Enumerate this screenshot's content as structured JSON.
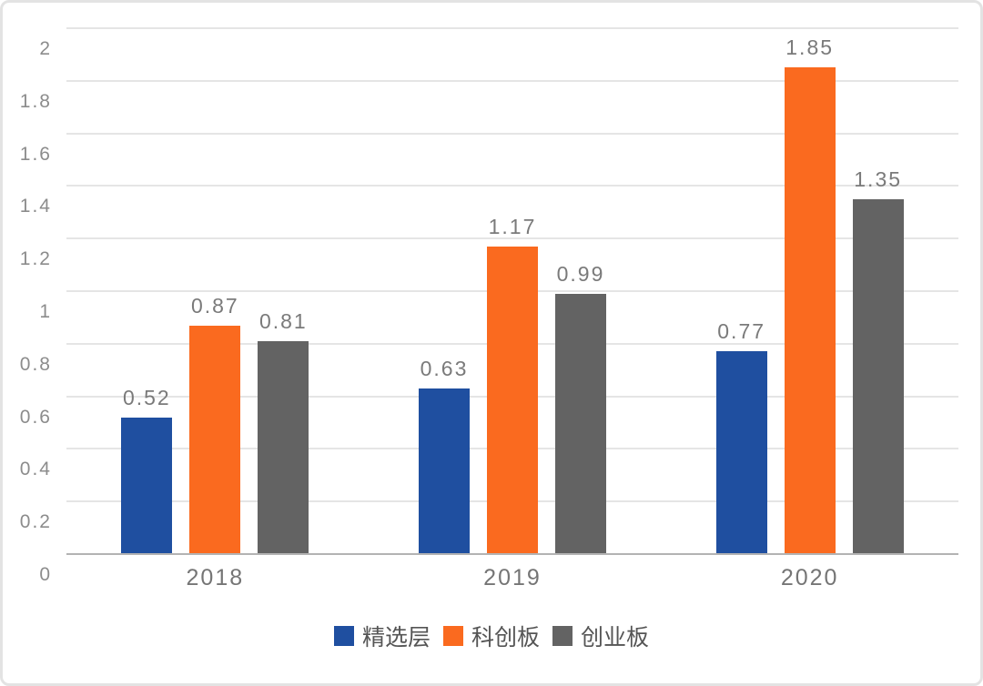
{
  "chart_data": {
    "type": "bar",
    "title": "",
    "xlabel": "",
    "ylabel": "",
    "categories": [
      "2018",
      "2019",
      "2020"
    ],
    "series": [
      {
        "name": "精选层",
        "color": "#1f4fa0",
        "values": [
          0.52,
          0.63,
          0.77
        ]
      },
      {
        "name": "科创板",
        "color": "#fa6a1f",
        "values": [
          0.87,
          1.17,
          1.85
        ]
      },
      {
        "name": "创业板",
        "color": "#636363",
        "values": [
          0.81,
          0.99,
          1.35
        ]
      }
    ],
    "value_labels": [
      [
        "0.52",
        "0.63",
        "0.77"
      ],
      [
        "0.87",
        "1.17",
        "1.85"
      ],
      [
        "0.81",
        "0.99",
        "1.35"
      ]
    ],
    "ylim": [
      0,
      2
    ],
    "yticks": [
      {
        "label": "2",
        "value": 2
      },
      {
        "label": "1.8",
        "value": 1.8
      },
      {
        "label": "1.6",
        "value": 1.6
      },
      {
        "label": "1.4",
        "value": 1.4
      },
      {
        "label": "1.2",
        "value": 1.2
      },
      {
        "label": "1",
        "value": 1
      },
      {
        "label": "0.8",
        "value": 0.8
      },
      {
        "label": "0.6",
        "value": 0.6
      },
      {
        "label": "0.4",
        "value": 0.4
      },
      {
        "label": "0.2",
        "value": 0.2
      },
      {
        "label": "0",
        "value": 0
      }
    ],
    "grid": true,
    "legend_position": "bottom",
    "colors": {
      "gridline": "#e5e5e5",
      "baseline": "#b3b3b3",
      "tick_text": "#8c8c8c",
      "value_text": "#7a7a7a",
      "category_text": "#757575",
      "legend_text": "#555555",
      "card_border": "#e3e3e3",
      "background": "#ffffff"
    }
  }
}
